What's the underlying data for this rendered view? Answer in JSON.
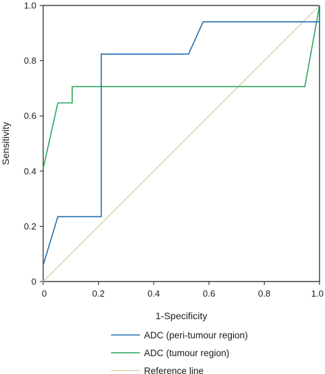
{
  "chart_data": {
    "type": "line",
    "title": "",
    "xlabel": "1-Specificity",
    "ylabel": "Sensitivity",
    "xlim": [
      0,
      1
    ],
    "ylim": [
      0,
      1
    ],
    "x_ticks": [
      "0",
      "0.2",
      "0.4",
      "0.6",
      "0.8",
      "1.0"
    ],
    "y_ticks": [
      "0",
      "0.2",
      "0.4",
      "0.6",
      "0.8",
      "1.0"
    ],
    "grid": false,
    "legend_position": "bottom",
    "series": [
      {
        "name": "ADC (peri-tumour region)",
        "color": "#1f6fb0",
        "points": [
          [
            0,
            0.06
          ],
          [
            0,
            0.06
          ],
          [
            0.053,
            0.235
          ],
          [
            0.21,
            0.235
          ],
          [
            0.21,
            0.824
          ],
          [
            0.526,
            0.824
          ],
          [
            0.579,
            0.941
          ],
          [
            1.0,
            0.941
          ],
          [
            1.0,
            1.0
          ]
        ]
      },
      {
        "name": "ADC (tumour region)",
        "color": "#2aa35a",
        "points": [
          [
            0,
            0.41
          ],
          [
            0.053,
            0.647
          ],
          [
            0.105,
            0.647
          ],
          [
            0.105,
            0.706
          ],
          [
            0.947,
            0.706
          ],
          [
            1.0,
            1.0
          ]
        ]
      },
      {
        "name": "Reference line",
        "color": "#d6d3a8",
        "points": [
          [
            0,
            0
          ],
          [
            1,
            1
          ]
        ]
      }
    ]
  }
}
